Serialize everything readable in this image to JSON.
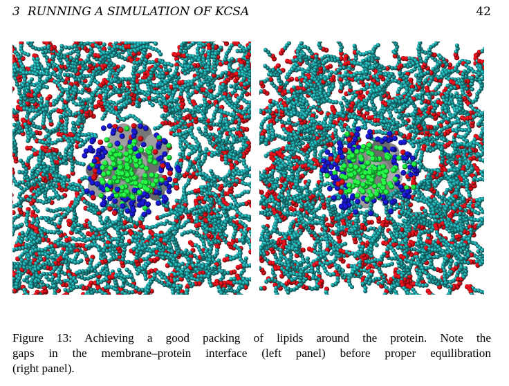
{
  "header": {
    "section_number": "3",
    "section_title": "RUNNING A SIMULATION OF KCSA",
    "page_number": "42"
  },
  "figure": {
    "panels": [
      {
        "name": "left panel"
      },
      {
        "name": "right panel"
      }
    ],
    "colors": {
      "lipid_tail": "#1f9a9c",
      "lipid_head": "#e0101a",
      "protein_blue": "#1a1ad8",
      "protein_green": "#22ee44",
      "surface_gray": "#8a8a8a",
      "background": "#ffffff"
    },
    "caption_lines": [
      "Figure 13: Achieving a good packing of lipids around the protein.  Note the",
      "gaps in the membrane–protein interface (left panel) before proper equilibration",
      "(right panel)."
    ]
  }
}
